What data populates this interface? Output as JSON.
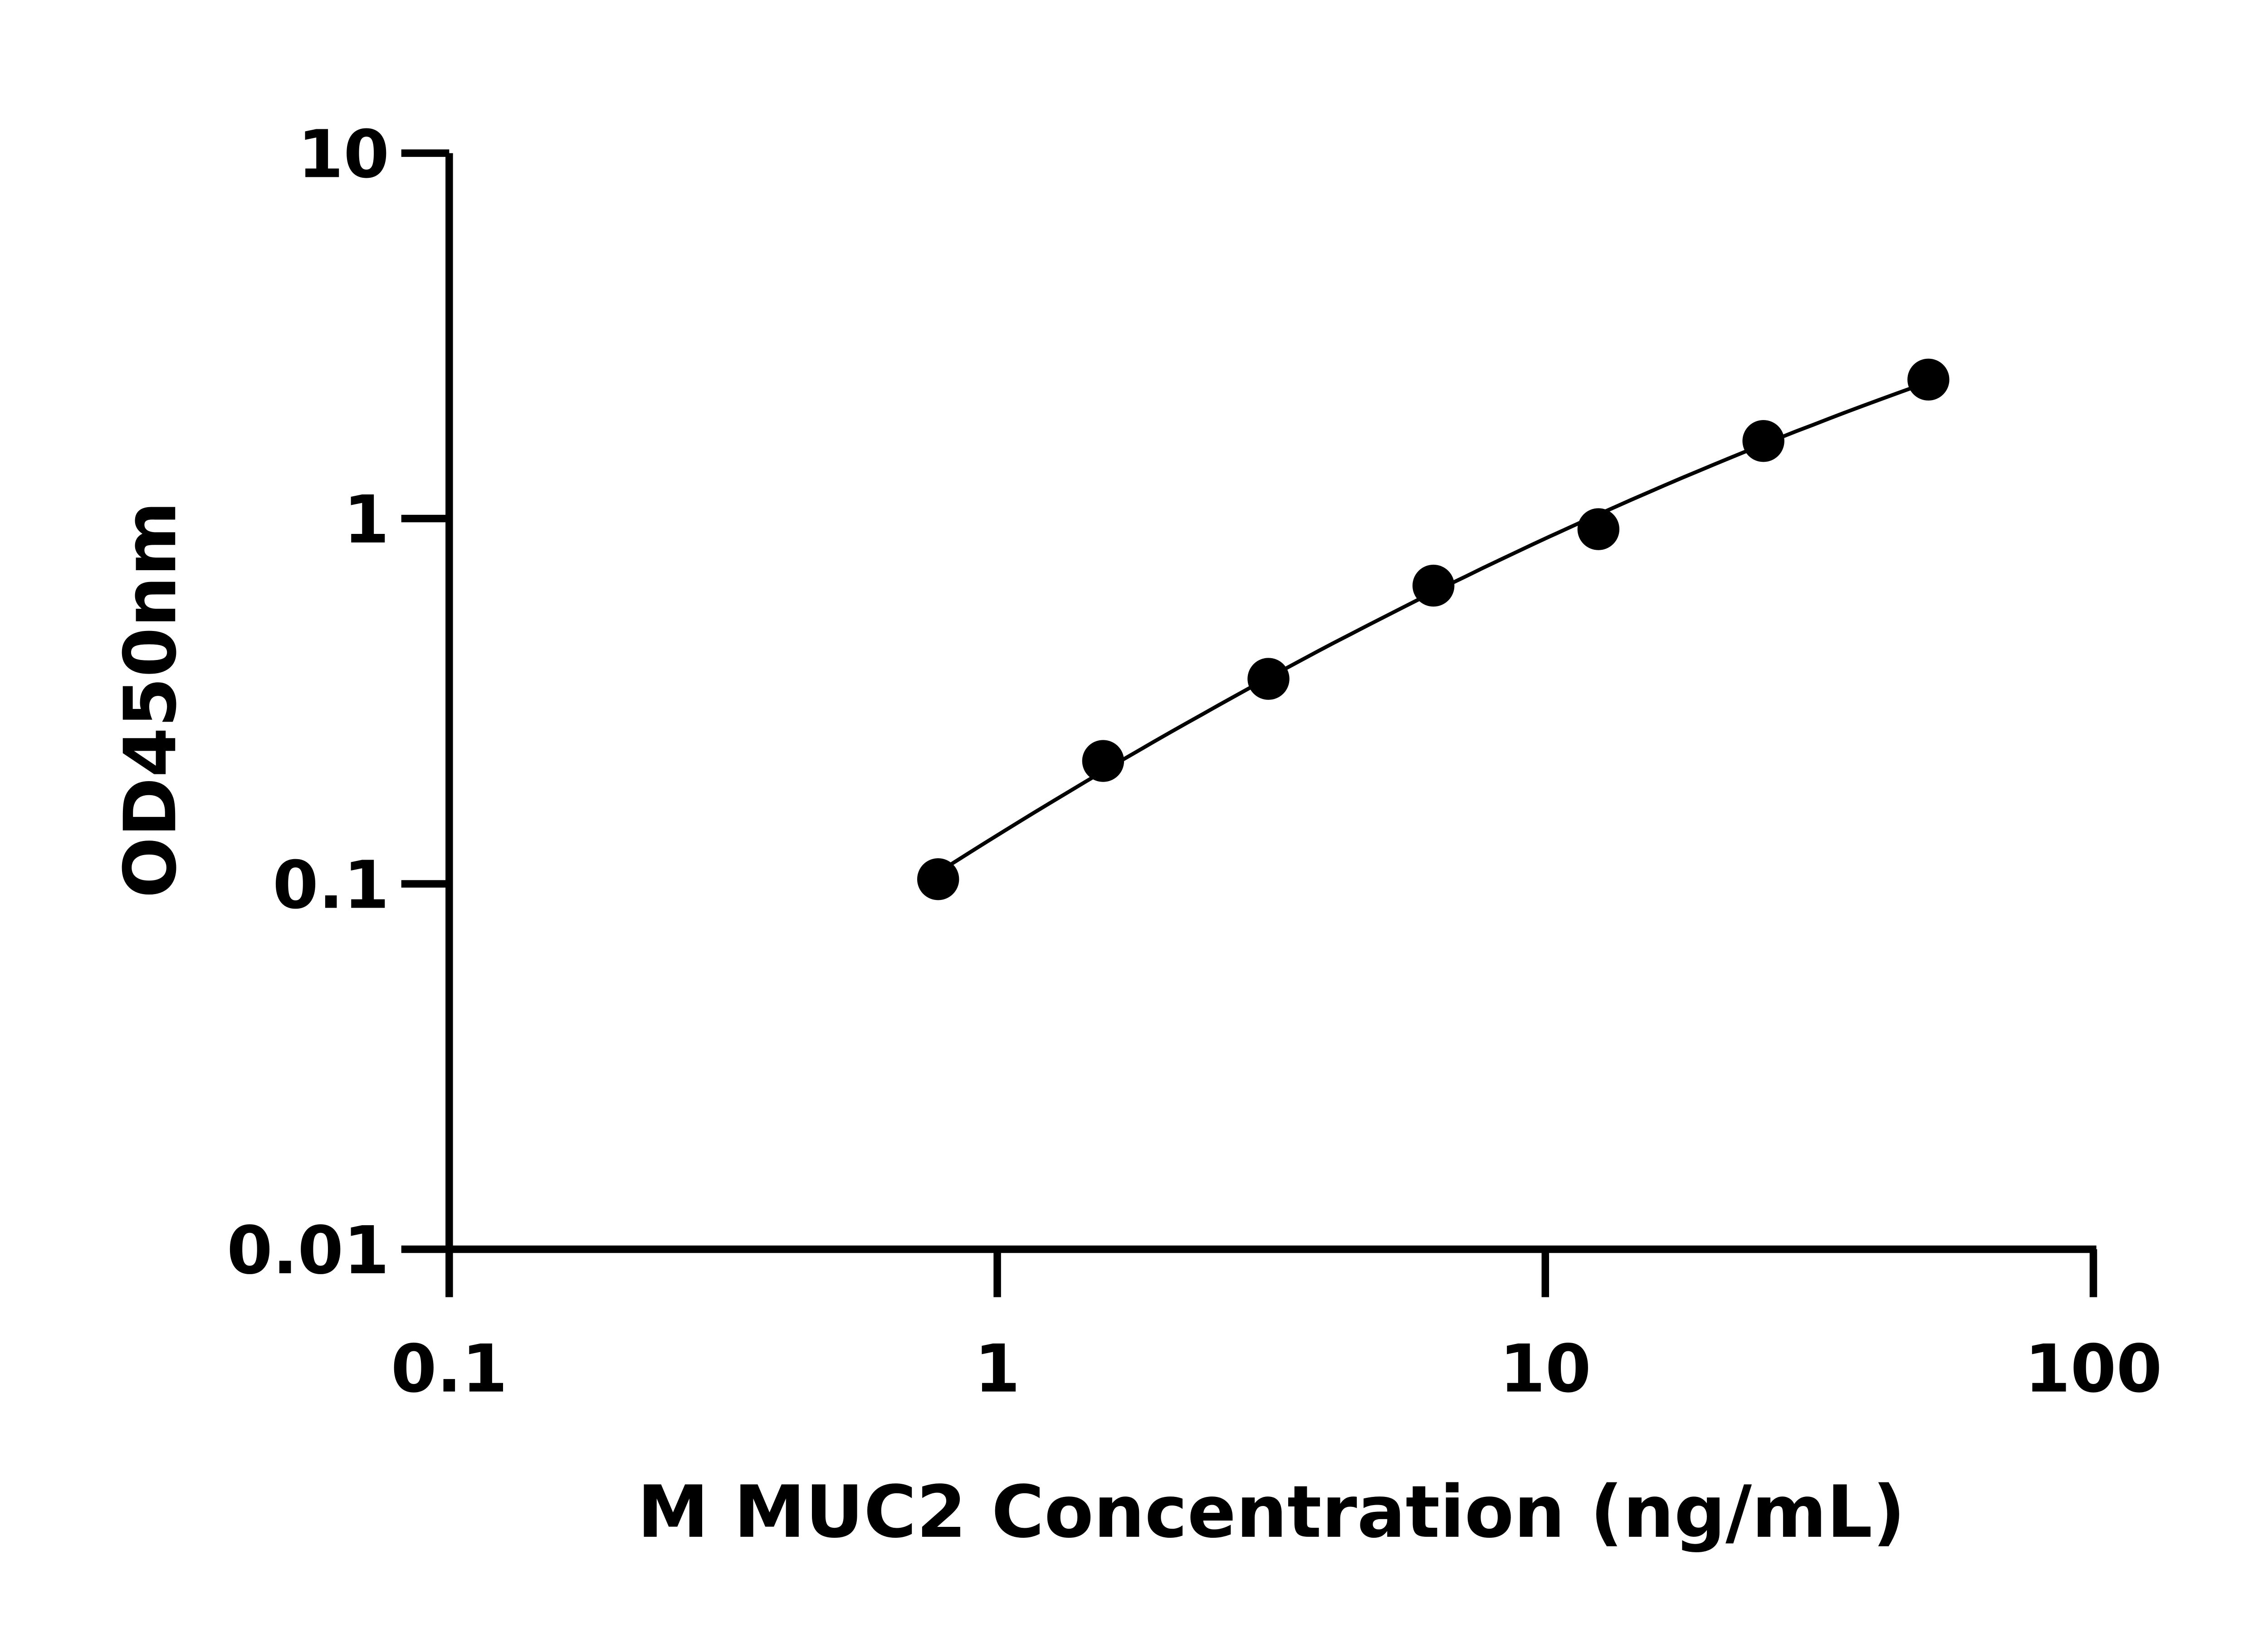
{
  "chart_data": {
    "type": "scatter",
    "title": "",
    "xlabel": "M MUC2 Concentration (ng/mL)",
    "ylabel": "OD450nm",
    "x_scale": "log",
    "y_scale": "log",
    "xlim": [
      0.1,
      100
    ],
    "ylim": [
      0.01,
      10
    ],
    "x_ticks": [
      "0.1",
      "1",
      "10",
      "100"
    ],
    "y_ticks": [
      "0.01",
      "0.1",
      "1",
      "10"
    ],
    "grid": false,
    "fit_line": true,
    "series": [
      {
        "x": [
          0.78,
          1.56,
          3.125,
          6.25,
          12.5,
          25,
          50
        ],
        "y": [
          0.103,
          0.217,
          0.364,
          0.655,
          0.935,
          1.63,
          2.4
        ]
      }
    ],
    "colors": {
      "marker": "#000000",
      "line": "#000000",
      "axis": "#000000"
    }
  }
}
